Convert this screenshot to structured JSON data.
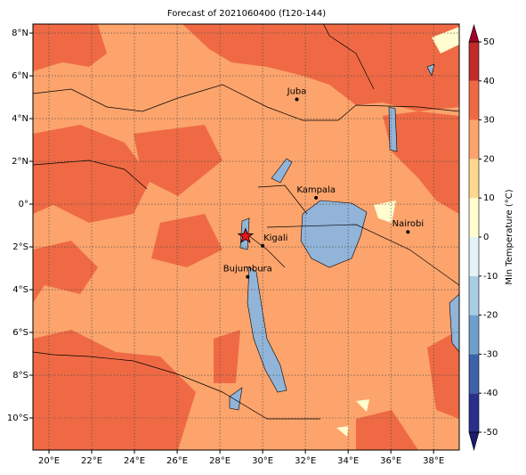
{
  "map": {
    "title": "Forecast of 2021060400 (f120-144)",
    "xlim": [
      19.25,
      39.2
    ],
    "ylim": [
      -11.5,
      8.42
    ],
    "xticks": [
      {
        "value": 20,
        "label": "20°E"
      },
      {
        "value": 22,
        "label": "22°E"
      },
      {
        "value": 24,
        "label": "24°E"
      },
      {
        "value": 26,
        "label": "26°E"
      },
      {
        "value": 28,
        "label": "28°E"
      },
      {
        "value": 30,
        "label": "30°E"
      },
      {
        "value": 32,
        "label": "32°E"
      },
      {
        "value": 34,
        "label": "34°E"
      },
      {
        "value": 36,
        "label": "36°E"
      },
      {
        "value": 38,
        "label": "38°E"
      }
    ],
    "yticks": [
      {
        "value": 8,
        "label": "8°N"
      },
      {
        "value": 6,
        "label": "6°N"
      },
      {
        "value": 4,
        "label": "4°N"
      },
      {
        "value": 2,
        "label": "2°N"
      },
      {
        "value": 0,
        "label": "0°"
      },
      {
        "value": -2,
        "label": "2°S"
      },
      {
        "value": -4,
        "label": "4°S"
      },
      {
        "value": -6,
        "label": "6°S"
      },
      {
        "value": -8,
        "label": "8°S"
      },
      {
        "value": -10,
        "label": "10°S"
      }
    ],
    "grid": true,
    "cities": [
      {
        "name": "Juba",
        "lon": 31.6,
        "lat": 4.9
      },
      {
        "name": "Kampala",
        "lon": 32.5,
        "lat": 0.3
      },
      {
        "name": "Nairobi",
        "lon": 36.8,
        "lat": -1.3
      },
      {
        "name": "Kigali",
        "lon": 30.0,
        "lat": -1.95
      },
      {
        "name": "Bujumbura",
        "lon": 29.3,
        "lat": -3.4
      }
    ],
    "marker": {
      "lon": 29.2,
      "lat": -1.5,
      "color": "#e8141c"
    },
    "lake_color": "#91b4d8",
    "colorbar": {
      "label": "Min Temperature (°C)",
      "lim": [
        -50,
        50
      ],
      "ticks": [
        -50,
        -40,
        -30,
        -20,
        -10,
        0,
        10,
        20,
        30,
        40,
        50
      ],
      "colors": [
        "#2b2f8c",
        "#3d62aa",
        "#6f9fcb",
        "#a9cde3",
        "#e3f2f7",
        "#fffccf",
        "#fed88e",
        "#fca46c",
        "#ef6a44",
        "#c32a2c"
      ],
      "under_color": "#1c1d6e",
      "over_color": "#a50026"
    }
  }
}
